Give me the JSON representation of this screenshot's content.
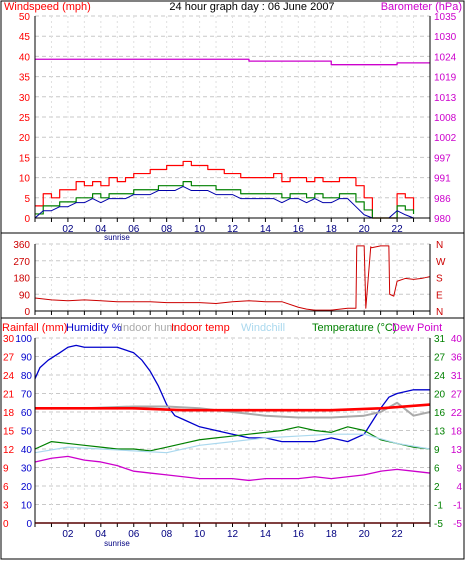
{
  "page": {
    "title": "24 hour graph day : 06 June 2007"
  },
  "colors": {
    "windspeed": "#ff0000",
    "gust": "#ff0000",
    "avgwind": "#008000",
    "wind_line": "#0000aa",
    "barometer": "#cc00cc",
    "direction": "#cc0000",
    "rainfall": "#ff0000",
    "humidity": "#0000cc",
    "indoor_hum": "#aaaaaa",
    "indoor_temp": "#ff0000",
    "windchill": "#aad8ee",
    "temperature": "#008000",
    "dew_point": "#cc00cc",
    "grid": "#c8c8c8",
    "hour_grid": "#e0e0e0"
  },
  "hours": [
    "02",
    "04",
    "06",
    "08",
    "10",
    "12",
    "14",
    "16",
    "18",
    "20",
    "22"
  ],
  "sunrise_label": "sunrise",
  "chart_data": [
    {
      "type": "line",
      "name": "wind-barometer",
      "left_axis": {
        "label": "Windspeed (mph)",
        "ticks": [
          "0",
          "5",
          "10",
          "15",
          "20",
          "25",
          "30",
          "35",
          "40",
          "45",
          "50"
        ],
        "range": [
          0,
          50
        ]
      },
      "right_axis": {
        "label": "Barometer (hPa)",
        "ticks": [
          "980",
          "986",
          "991",
          "997",
          "1002",
          "1008",
          "1013",
          "1019",
          "1024",
          "1030",
          "1035"
        ],
        "range": [
          980,
          1036
        ]
      },
      "x_range": [
        0,
        24
      ],
      "series": [
        {
          "key": "gust",
          "axis": "left",
          "x": [
            0,
            0.5,
            1,
            1.5,
            2,
            2.5,
            3,
            3.5,
            4,
            4.5,
            5,
            5.5,
            6,
            6.5,
            7,
            7.5,
            8,
            8.5,
            9,
            9.5,
            10,
            10.5,
            11,
            11.5,
            12,
            12.5,
            13,
            13.5,
            14,
            14.5,
            15,
            15.5,
            16,
            16.5,
            17,
            17.5,
            18,
            18.5,
            19,
            19.5,
            20,
            20.5,
            21,
            21.5,
            22,
            22.5,
            23
          ],
          "y": [
            3,
            6,
            5,
            7,
            7,
            9,
            8,
            9,
            8,
            10,
            9,
            10,
            11,
            11,
            12,
            12,
            13,
            13,
            14,
            13,
            13,
            12,
            12,
            11,
            11,
            10,
            10,
            10,
            10,
            11,
            9,
            10,
            10,
            9,
            10,
            9,
            9,
            10,
            10,
            8,
            5,
            0,
            0,
            0,
            6,
            5,
            2
          ]
        },
        {
          "key": "avgwind",
          "axis": "left",
          "x": [
            0,
            0.5,
            1,
            1.5,
            2,
            2.5,
            3,
            3.5,
            4,
            4.5,
            5,
            5.5,
            6,
            6.5,
            7,
            7.5,
            8,
            8.5,
            9,
            9.5,
            10,
            10.5,
            11,
            11.5,
            12,
            12.5,
            13,
            13.5,
            14,
            14.5,
            15,
            15.5,
            16,
            16.5,
            17,
            17.5,
            18,
            18.5,
            19,
            19.5,
            20,
            20.5,
            21,
            21.5,
            22,
            22.5,
            23
          ],
          "y": [
            1,
            3,
            3,
            4,
            4,
            5,
            5,
            6,
            5,
            6,
            6,
            6,
            7,
            7,
            7,
            8,
            8,
            8,
            9,
            8,
            8,
            8,
            7,
            7,
            7,
            6,
            6,
            6,
            6,
            6,
            5,
            6,
            6,
            5,
            6,
            5,
            5,
            6,
            6,
            4,
            2,
            0,
            0,
            0,
            3,
            2,
            1
          ]
        },
        {
          "key": "barometer",
          "axis": "right",
          "x": [
            0,
            5,
            10,
            12.5,
            13,
            16,
            18,
            19,
            21,
            22,
            23,
            24
          ],
          "y": [
            1024,
            1024,
            1024,
            1024,
            1023.5,
            1023.5,
            1022.5,
            1022.5,
            1022.5,
            1023,
            1023,
            1023
          ]
        }
      ]
    },
    {
      "type": "line",
      "name": "wind-direction",
      "left_axis": {
        "ticks": [
          "0",
          "90",
          "180",
          "270",
          "360"
        ],
        "range": [
          0,
          360
        ]
      },
      "right_axis": {
        "ticks": [
          "N",
          "E",
          "S",
          "W",
          "N"
        ]
      },
      "x_range": [
        0,
        24
      ],
      "series": [
        {
          "key": "direction",
          "x": [
            0,
            1,
            2,
            3,
            4,
            5,
            6,
            7,
            8,
            9,
            10,
            11,
            12,
            13,
            14,
            15,
            16,
            16.5,
            17,
            18,
            19,
            19.5,
            19.55,
            20,
            20.1,
            20.4,
            20.45,
            21,
            21.5,
            21.55,
            21.8,
            22,
            22.5,
            23,
            23.5,
            24
          ],
          "y": [
            70,
            60,
            55,
            60,
            55,
            50,
            50,
            50,
            45,
            45,
            45,
            40,
            50,
            55,
            50,
            50,
            20,
            10,
            5,
            5,
            15,
            15,
            350,
            350,
            15,
            345,
            340,
            350,
            350,
            90,
            80,
            160,
            175,
            170,
            175,
            185
          ]
        }
      ]
    },
    {
      "type": "line",
      "name": "humidity-temperature",
      "left_axis": {
        "label": "Rainfall (mm)",
        "ticks": [
          "0",
          "3",
          "6",
          "9",
          "12",
          "15",
          "18",
          "21",
          "24",
          "27",
          "30"
        ],
        "range": [
          0,
          30
        ]
      },
      "left_axis2": {
        "label": "Humidity %",
        "ticks": [
          "0",
          "10",
          "20",
          "30",
          "40",
          "50",
          "60",
          "70",
          "80",
          "90",
          "100"
        ],
        "range": [
          0,
          100
        ]
      },
      "right_axis": {
        "label": "Temperature (°C)",
        "ticks": [
          "-5",
          "-1",
          "2",
          "6",
          "9",
          "13",
          "16",
          "20",
          "24",
          "27",
          "31"
        ],
        "range": [
          -5,
          31
        ]
      },
      "right_axis2": {
        "label": "Dew Point",
        "ticks": [
          "-5",
          "-1",
          "4",
          "9",
          "13",
          "18",
          "22",
          "27",
          "31",
          "36",
          "40"
        ],
        "range": [
          -5,
          40
        ]
      },
      "legend": [
        "Indoor hum",
        "Indoor temp",
        "Windchill"
      ],
      "x_range": [
        0,
        24
      ],
      "series": [
        {
          "key": "humidity",
          "axis": "left2",
          "x": [
            0,
            0.3,
            0.8,
            1.5,
            2,
            2.5,
            3,
            4,
            5,
            6,
            6.5,
            7,
            7.5,
            8,
            8.5,
            9,
            10,
            11,
            12,
            13,
            14,
            15,
            16,
            17,
            18,
            18.5,
            19,
            20,
            20.5,
            21,
            21.5,
            22,
            23,
            24
          ],
          "y": [
            78,
            84,
            88,
            92,
            95,
            96,
            95,
            95,
            95,
            92,
            88,
            82,
            74,
            64,
            58,
            56,
            52,
            50,
            48,
            46,
            46,
            44,
            44,
            44,
            46,
            45,
            44,
            48,
            55,
            62,
            68,
            70,
            72,
            72
          ]
        },
        {
          "key": "indoor_hum",
          "axis": "left2",
          "x": [
            0,
            3,
            6,
            8,
            10,
            12,
            14,
            16,
            18,
            20,
            21,
            22,
            23,
            24
          ],
          "y": [
            62,
            62,
            63,
            63,
            62,
            60,
            58,
            57,
            57,
            58,
            60,
            65,
            58,
            60
          ]
        },
        {
          "key": "indoor_temp",
          "axis": "left2",
          "x": [
            0,
            3,
            6,
            9,
            12,
            15,
            18,
            21,
            24
          ],
          "y": [
            62,
            62,
            62,
            61,
            61,
            61,
            61,
            62,
            64
          ]
        },
        {
          "key": "temperature",
          "axis": "left2",
          "x": [
            0,
            1,
            2,
            3,
            4,
            5,
            6,
            7,
            8,
            9,
            10,
            11,
            12,
            13,
            14,
            15,
            16,
            17,
            18,
            19,
            20,
            21,
            22,
            23,
            24
          ],
          "y": [
            40,
            44,
            43,
            42,
            41,
            40,
            40,
            39,
            41,
            43,
            45,
            46,
            47,
            48,
            49,
            50,
            52,
            50,
            49,
            52,
            50,
            45,
            43,
            41,
            40
          ]
        },
        {
          "key": "windchill",
          "axis": "left2",
          "x": [
            0,
            2,
            4,
            6,
            8,
            10,
            12,
            14,
            16,
            18,
            20,
            22,
            24
          ],
          "y": [
            38,
            41,
            40,
            39,
            38,
            42,
            44,
            46,
            47,
            48,
            48,
            43,
            40
          ]
        },
        {
          "key": "dew_point",
          "axis": "left2",
          "x": [
            0,
            1,
            2,
            3,
            4,
            5,
            6,
            7,
            8,
            9,
            10,
            11,
            12,
            13,
            14,
            15,
            16,
            17,
            18,
            19,
            20,
            21,
            22,
            23,
            24
          ],
          "y": [
            33,
            35,
            36,
            34,
            33,
            31,
            28,
            27,
            26,
            25,
            24,
            24,
            24,
            23,
            24,
            24,
            24,
            25,
            24,
            25,
            26,
            28,
            29,
            28,
            27
          ]
        },
        {
          "key": "rainfall",
          "axis": "left",
          "x": [
            0,
            24
          ],
          "y": [
            0,
            0
          ]
        }
      ]
    }
  ]
}
